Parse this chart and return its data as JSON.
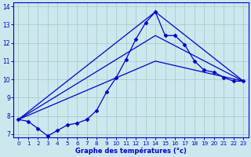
{
  "bg_color": "#cce8ee",
  "grid_color": "#aacccc",
  "line_color": "#0000cc",
  "xlabel": "Graphe des températures (°c)",
  "xlim": [
    -0.5,
    23.5
  ],
  "ylim": [
    6.8,
    14.2
  ],
  "yticks": [
    7,
    8,
    9,
    10,
    11,
    12,
    13,
    14
  ],
  "xticks": [
    0,
    1,
    2,
    3,
    4,
    5,
    6,
    7,
    8,
    9,
    10,
    11,
    12,
    13,
    14,
    15,
    16,
    17,
    18,
    19,
    20,
    21,
    22,
    23
  ],
  "main_line": {
    "x": [
      0,
      1,
      2,
      3,
      4,
      5,
      6,
      7,
      8,
      9,
      10,
      11,
      12,
      13,
      14,
      15,
      16,
      17,
      18,
      19,
      20,
      21,
      22,
      23
    ],
    "y": [
      7.8,
      7.7,
      7.3,
      6.9,
      7.2,
      7.5,
      7.6,
      7.8,
      8.3,
      9.3,
      10.1,
      11.1,
      12.2,
      13.1,
      13.7,
      12.4,
      12.4,
      11.9,
      11.0,
      10.5,
      10.4,
      10.1,
      9.9,
      9.9
    ]
  },
  "extra_lines": [
    {
      "x": [
        0,
        14,
        23
      ],
      "y": [
        7.8,
        13.7,
        9.9
      ]
    },
    {
      "x": [
        0,
        14,
        23
      ],
      "y": [
        7.8,
        11.0,
        9.9
      ]
    },
    {
      "x": [
        0,
        14,
        23
      ],
      "y": [
        7.8,
        12.4,
        9.9
      ]
    }
  ]
}
